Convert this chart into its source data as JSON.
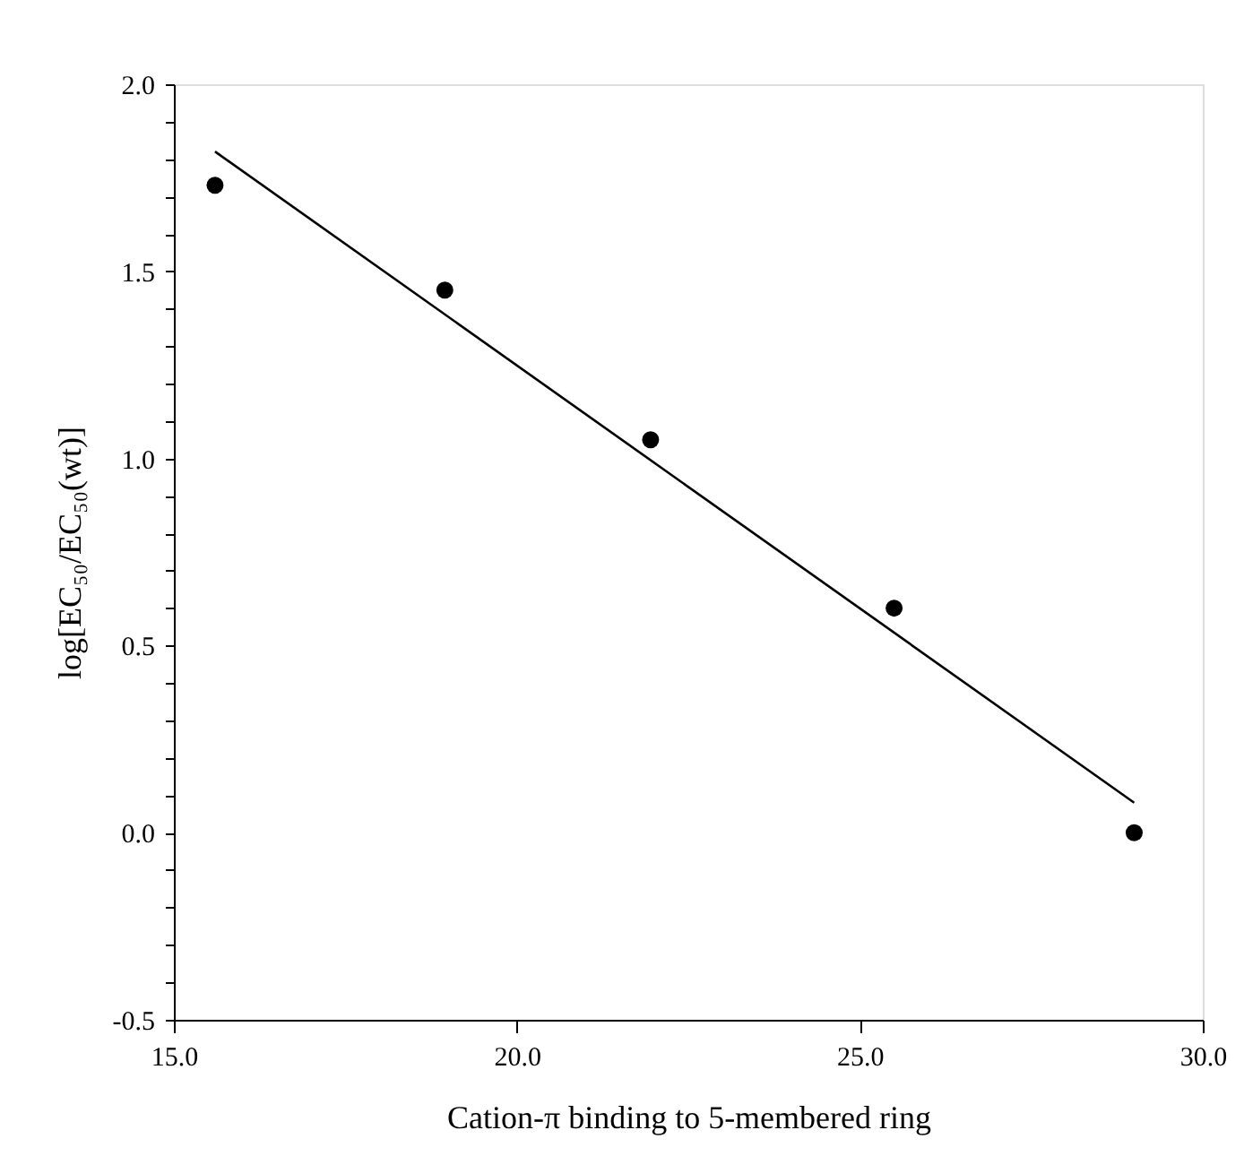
{
  "chart_data": {
    "type": "scatter",
    "xlabel": "Cation-π binding to 5-membered ring",
    "ylabel": "log[EC₅₀/EC₅₀(wt)]",
    "xlim": [
      15,
      30
    ],
    "ylim": [
      -0.5,
      2.0
    ],
    "xticks": [
      {
        "value": 15,
        "label": "15.0"
      },
      {
        "value": 20,
        "label": "20.0"
      },
      {
        "value": 25,
        "label": "25.0"
      },
      {
        "value": 30,
        "label": "30.0"
      }
    ],
    "yticks": [
      {
        "value": -0.5,
        "label": "-0.5"
      },
      {
        "value": -0.4,
        "label": null
      },
      {
        "value": -0.3,
        "label": null
      },
      {
        "value": -0.2,
        "label": null
      },
      {
        "value": -0.1,
        "label": null
      },
      {
        "value": 0,
        "label": "0.0"
      },
      {
        "value": 0.1,
        "label": null
      },
      {
        "value": 0.2,
        "label": null
      },
      {
        "value": 0.3,
        "label": null
      },
      {
        "value": 0.4,
        "label": null
      },
      {
        "value": 0.5,
        "label": "0.5"
      },
      {
        "value": 0.6,
        "label": null
      },
      {
        "value": 0.7,
        "label": null
      },
      {
        "value": 0.8,
        "label": null
      },
      {
        "value": 0.9,
        "label": null
      },
      {
        "value": 1.0,
        "label": "1.0"
      },
      {
        "value": 1.1,
        "label": null
      },
      {
        "value": 1.2,
        "label": null
      },
      {
        "value": 1.3,
        "label": null
      },
      {
        "value": 1.4,
        "label": null
      },
      {
        "value": 1.5,
        "label": "1.5"
      },
      {
        "value": 1.6,
        "label": null
      },
      {
        "value": 1.7,
        "label": null
      },
      {
        "value": 1.8,
        "label": null
      },
      {
        "value": 1.9,
        "label": null
      },
      {
        "value": 2.0,
        "label": "2.0"
      }
    ],
    "grid": false,
    "series": [
      {
        "type": "scatter",
        "color": "#000000",
        "marker": "circle",
        "x": [
          15.6,
          18.95,
          21.95,
          25.5,
          29.0
        ],
        "values": [
          1.73,
          1.45,
          1.05,
          0.6,
          0.0
        ]
      },
      {
        "type": "line",
        "color": "#000000",
        "marker": "none",
        "line_style": "solid",
        "x": [
          15.6,
          29.0
        ],
        "values": [
          1.82,
          0.08
        ]
      }
    ]
  }
}
